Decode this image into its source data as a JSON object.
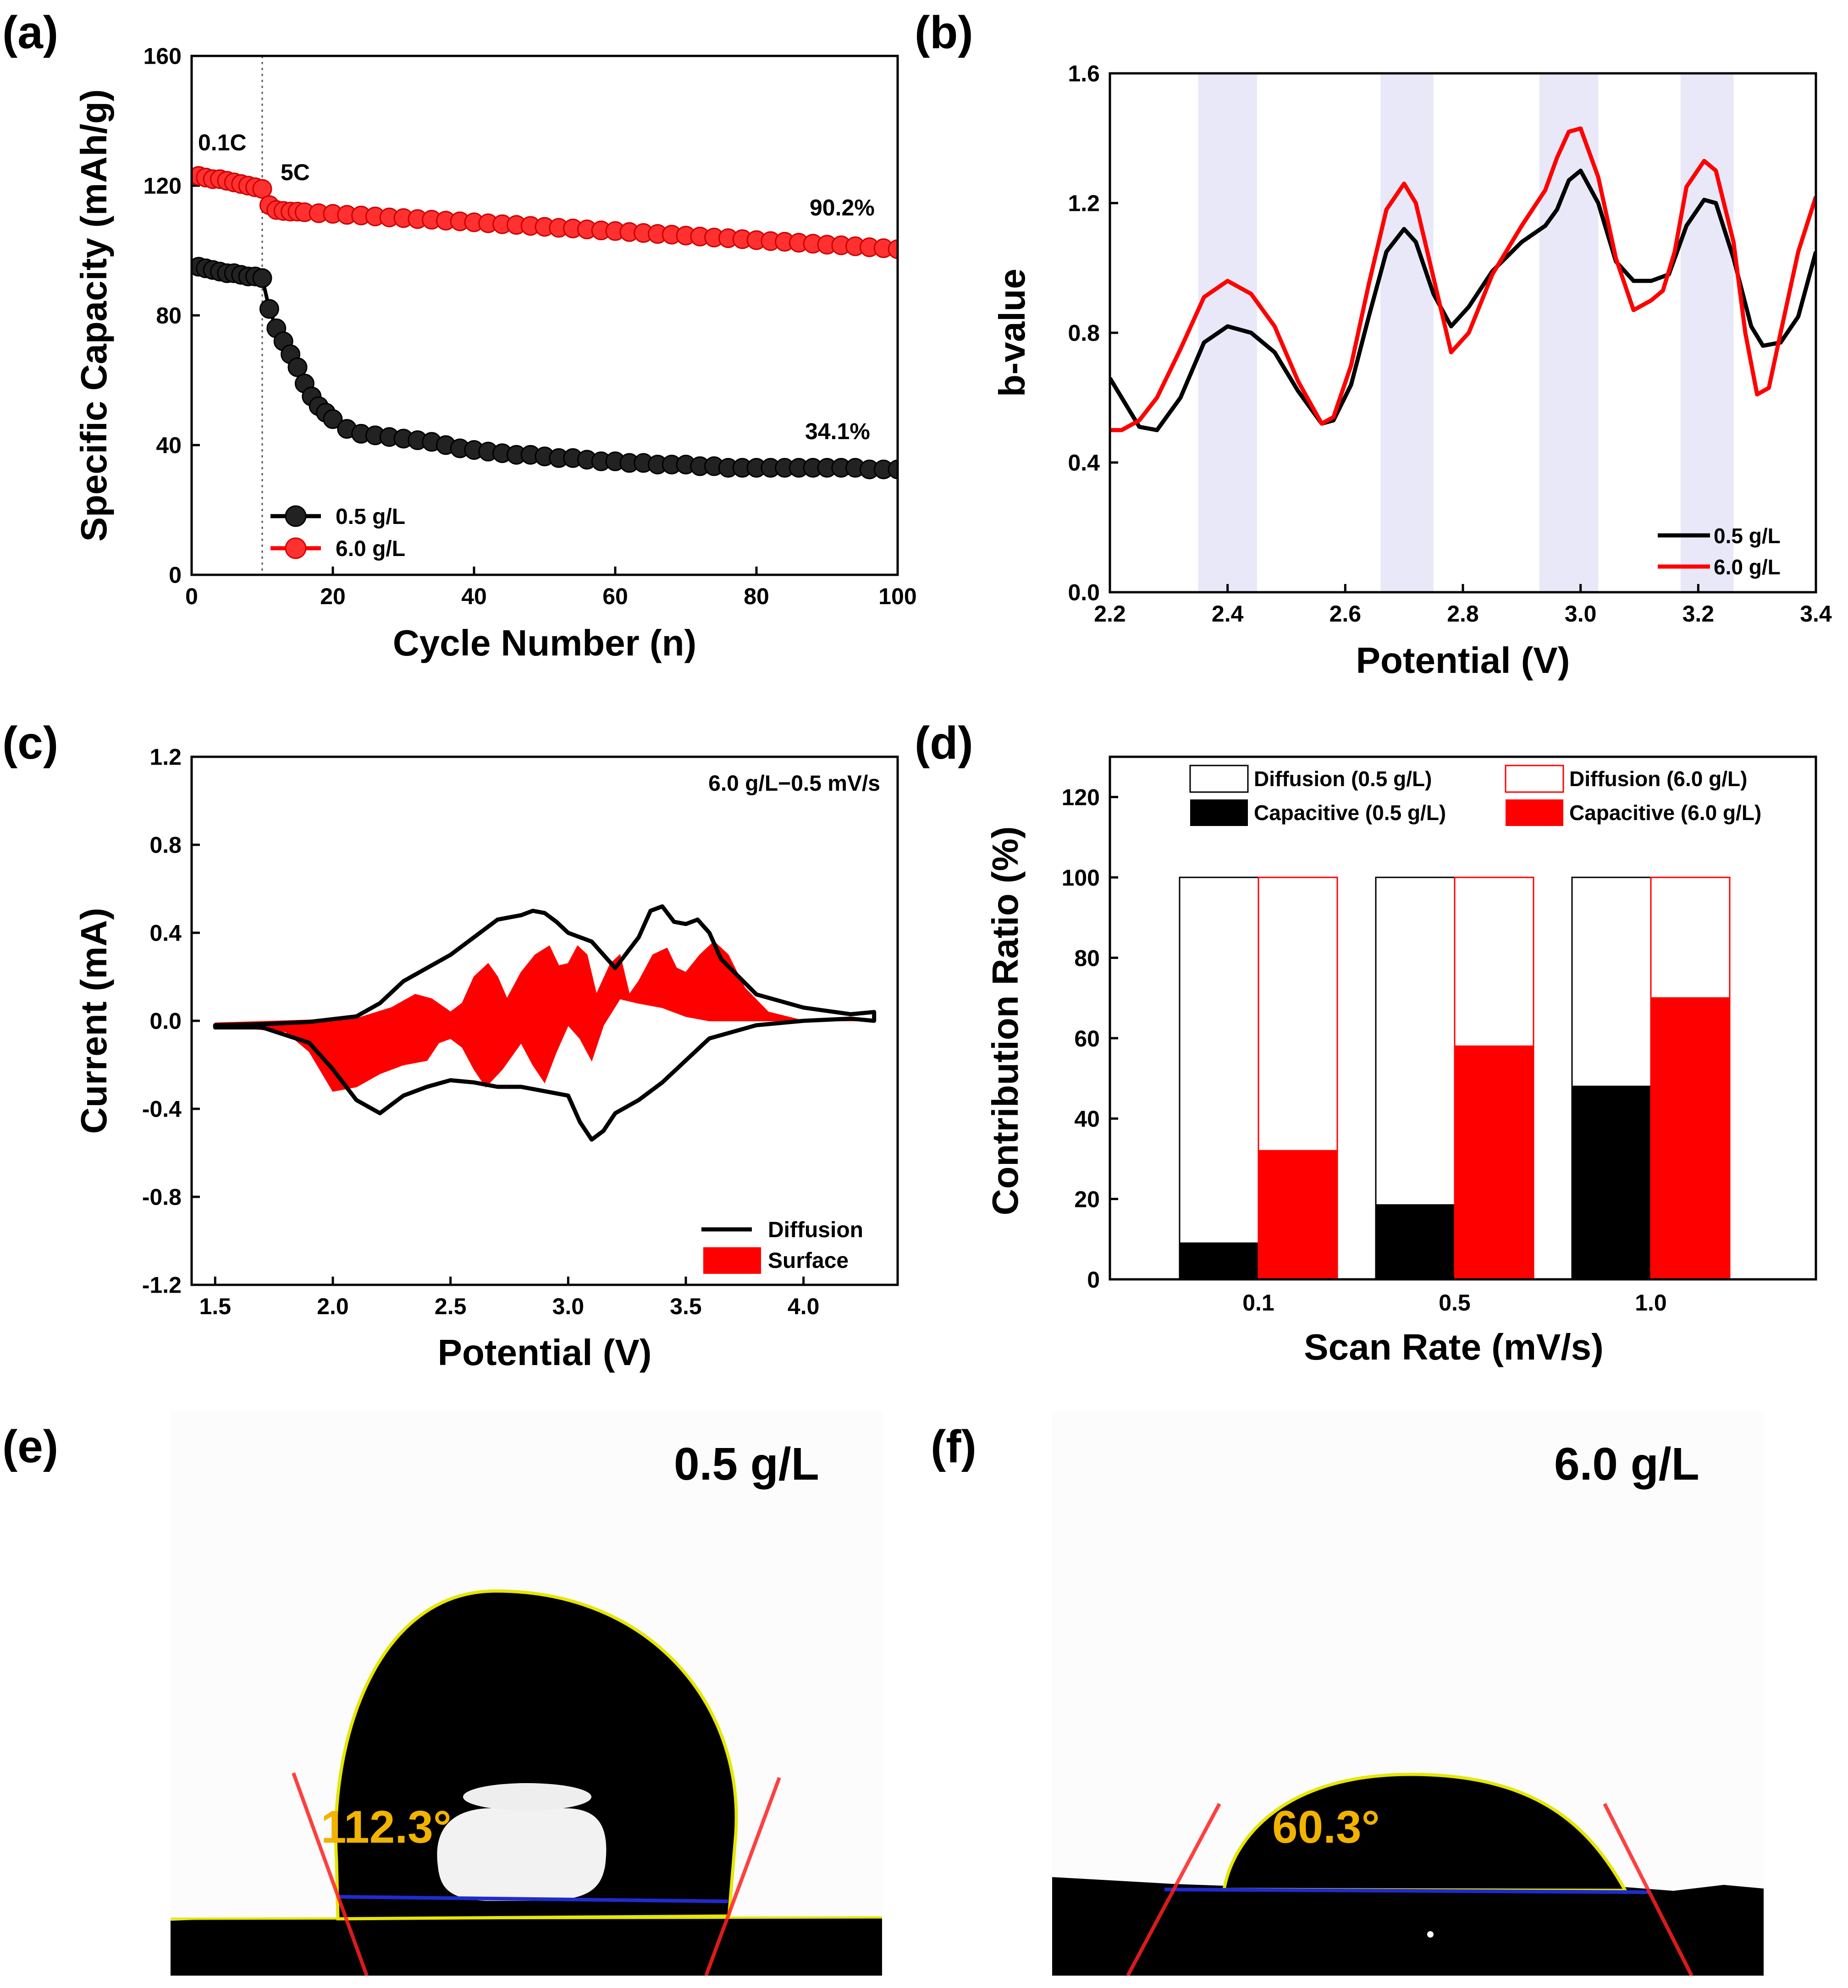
{
  "figure": {
    "panel_labels": [
      "(a)",
      "(b)",
      "(c)",
      "(d)",
      "(e)",
      "(f)"
    ]
  },
  "colors": {
    "black_series": "#000000",
    "red_series": "#ff0000",
    "band": "#e8e8f8",
    "baseline": "#1f2bd0",
    "angle_text": "#f2b200",
    "outline": "#e6e600"
  },
  "chart_data": [
    {
      "panel": "(a)",
      "type": "scatter",
      "xlabel": "Cycle Number (n)",
      "ylabel": "Specific Capacity (mAh/g)",
      "xlim": [
        0,
        100
      ],
      "ylim": [
        0,
        160
      ],
      "xticks": [
        0,
        20,
        40,
        60,
        80,
        100
      ],
      "yticks": [
        0,
        40,
        80,
        120,
        160
      ],
      "xtick_labels": [
        "0",
        "20",
        "40",
        "60",
        "80",
        "100"
      ],
      "ytick_labels": [
        "0",
        "40",
        "80",
        "120",
        "160"
      ],
      "annotations": [
        "0.1C",
        "5C",
        "90.2%",
        "34.1%"
      ],
      "rate_switch_x": 10,
      "series": [
        {
          "name": "0.5 g/L",
          "color": "#000000",
          "x": [
            1,
            2,
            3,
            4,
            5,
            6,
            7,
            8,
            9,
            10,
            11,
            12,
            13,
            14,
            15,
            16,
            17,
            18,
            19,
            20,
            22,
            24,
            26,
            28,
            30,
            32,
            34,
            36,
            38,
            40,
            42,
            44,
            46,
            48,
            50,
            52,
            54,
            56,
            58,
            60,
            62,
            64,
            66,
            68,
            70,
            72,
            74,
            76,
            78,
            80,
            82,
            84,
            86,
            88,
            90,
            92,
            94,
            96,
            98,
            100
          ],
          "y": [
            95,
            94.5,
            94,
            93.5,
            93,
            93,
            92.5,
            92,
            92,
            91.5,
            82,
            76,
            72,
            68,
            64,
            59,
            55,
            52,
            50,
            48,
            45,
            43.5,
            43,
            42.5,
            42,
            41.5,
            41,
            40,
            39,
            38.5,
            38,
            37.5,
            37,
            37,
            36.5,
            36,
            36,
            35.5,
            35,
            35,
            34.5,
            34.5,
            34,
            34,
            34,
            33.5,
            33.5,
            33,
            33,
            33,
            33,
            33,
            33,
            33,
            33,
            33,
            33,
            32.5,
            32.5,
            32.5
          ]
        },
        {
          "name": "6.0 g/L",
          "color": "#ff0000",
          "x": [
            1,
            2,
            3,
            4,
            5,
            6,
            7,
            8,
            9,
            10,
            11,
            12,
            13,
            14,
            15,
            16,
            18,
            20,
            22,
            24,
            26,
            28,
            30,
            32,
            34,
            36,
            38,
            40,
            42,
            44,
            46,
            48,
            50,
            52,
            54,
            56,
            58,
            60,
            62,
            64,
            66,
            68,
            70,
            72,
            74,
            76,
            78,
            80,
            82,
            84,
            86,
            88,
            90,
            92,
            94,
            96,
            98,
            100
          ],
          "y": [
            123,
            122.5,
            122,
            122,
            121.5,
            121,
            120.5,
            120,
            119.5,
            119,
            114,
            112.5,
            112.2,
            112,
            112,
            111.8,
            111.5,
            111.3,
            111,
            110.8,
            110.5,
            110.2,
            110,
            109.7,
            109.5,
            109.2,
            109,
            108.7,
            108.4,
            108.1,
            107.9,
            107.6,
            107.3,
            107,
            106.8,
            106.5,
            106.2,
            106,
            105.7,
            105.4,
            105.1,
            104.9,
            104.6,
            104.3,
            104,
            103.8,
            103.5,
            103.2,
            102.9,
            102.7,
            102.4,
            102.1,
            101.8,
            101.6,
            101.3,
            101,
            100.7,
            100.4
          ]
        }
      ]
    },
    {
      "panel": "(b)",
      "type": "line",
      "xlabel": "Potential (V)",
      "ylabel": "b-value",
      "xlim": [
        2.2,
        3.4
      ],
      "ylim": [
        0.0,
        1.6
      ],
      "xticks": [
        2.2,
        2.4,
        2.6,
        2.8,
        3.0,
        3.2,
        3.4
      ],
      "yticks": [
        0.0,
        0.4,
        0.8,
        1.2,
        1.6
      ],
      "xtick_labels": [
        "2.2",
        "2.4",
        "2.6",
        "2.8",
        "3.0",
        "3.2",
        "3.4"
      ],
      "ytick_labels": [
        "0.0",
        "0.4",
        "0.8",
        "1.2",
        "1.6"
      ],
      "bands": [
        [
          2.35,
          2.45
        ],
        [
          2.66,
          2.75
        ],
        [
          2.93,
          3.03
        ],
        [
          3.17,
          3.26
        ]
      ],
      "series": [
        {
          "name": "0.5 g/L",
          "color": "#000000",
          "x": [
            2.2,
            2.22,
            2.25,
            2.28,
            2.32,
            2.36,
            2.4,
            2.44,
            2.48,
            2.52,
            2.56,
            2.58,
            2.61,
            2.64,
            2.67,
            2.7,
            2.72,
            2.75,
            2.78,
            2.81,
            2.85,
            2.9,
            2.94,
            2.96,
            2.98,
            3.0,
            3.03,
            3.06,
            3.09,
            3.12,
            3.15,
            3.18,
            3.21,
            3.23,
            3.26,
            3.29,
            3.31,
            3.34,
            3.37,
            3.4
          ],
          "y": [
            0.66,
            0.6,
            0.51,
            0.5,
            0.6,
            0.77,
            0.82,
            0.8,
            0.74,
            0.62,
            0.52,
            0.53,
            0.64,
            0.85,
            1.05,
            1.12,
            1.08,
            0.92,
            0.82,
            0.88,
            0.99,
            1.08,
            1.13,
            1.18,
            1.27,
            1.3,
            1.2,
            1.02,
            0.96,
            0.96,
            0.98,
            1.13,
            1.21,
            1.2,
            1.03,
            0.82,
            0.76,
            0.77,
            0.85,
            1.05
          ]
        },
        {
          "name": "6.0 g/L",
          "color": "#ff0000",
          "x": [
            2.2,
            2.22,
            2.25,
            2.28,
            2.32,
            2.36,
            2.4,
            2.44,
            2.48,
            2.52,
            2.56,
            2.58,
            2.61,
            2.64,
            2.67,
            2.7,
            2.72,
            2.75,
            2.78,
            2.81,
            2.85,
            2.9,
            2.94,
            2.96,
            2.98,
            3.0,
            3.03,
            3.06,
            3.09,
            3.12,
            3.14,
            3.16,
            3.18,
            3.21,
            3.23,
            3.26,
            3.28,
            3.3,
            3.32,
            3.34,
            3.37,
            3.4
          ],
          "y": [
            0.5,
            0.5,
            0.53,
            0.6,
            0.75,
            0.91,
            0.96,
            0.92,
            0.82,
            0.65,
            0.52,
            0.54,
            0.7,
            0.95,
            1.18,
            1.26,
            1.2,
            0.97,
            0.74,
            0.8,
            0.98,
            1.13,
            1.24,
            1.34,
            1.42,
            1.43,
            1.28,
            1.03,
            0.87,
            0.9,
            0.93,
            1.05,
            1.25,
            1.33,
            1.3,
            1.08,
            0.8,
            0.61,
            0.63,
            0.8,
            1.05,
            1.22
          ]
        }
      ]
    },
    {
      "panel": "(c)",
      "type": "line",
      "xlabel": "Potential (V)",
      "ylabel": "Current (mA)",
      "title": "6.0 g/L−0.5 mV/s",
      "xlim": [
        1.4,
        4.4
      ],
      "ylim": [
        -1.2,
        1.2
      ],
      "xticks": [
        1.5,
        2.0,
        2.5,
        3.0,
        3.5,
        4.0
      ],
      "yticks": [
        -1.2,
        -0.8,
        -0.4,
        0.0,
        0.4,
        0.8,
        1.2
      ],
      "xtick_labels": [
        "1.5",
        "2.0",
        "2.5",
        "3.0",
        "3.5",
        "4.0"
      ],
      "ytick_labels": [
        "-1.2",
        "-0.8",
        "-0.4",
        "0.0",
        "0.4",
        "0.8",
        "1.2"
      ],
      "series": [
        {
          "name": "Diffusion",
          "color": "#000000",
          "upper_x": [
            1.5,
            1.7,
            1.9,
            2.1,
            2.2,
            2.3,
            2.5,
            2.6,
            2.7,
            2.8,
            2.85,
            2.9,
            2.95,
            3.0,
            3.05,
            3.1,
            3.15,
            3.2,
            3.3,
            3.35,
            3.4,
            3.45,
            3.5,
            3.55,
            3.6,
            3.65,
            3.8,
            4.0,
            4.2,
            4.3
          ],
          "upper_y": [
            -0.02,
            -0.015,
            -0.005,
            0.02,
            0.08,
            0.18,
            0.3,
            0.38,
            0.46,
            0.48,
            0.5,
            0.49,
            0.45,
            0.4,
            0.38,
            0.36,
            0.3,
            0.24,
            0.38,
            0.5,
            0.52,
            0.45,
            0.44,
            0.46,
            0.4,
            0.28,
            0.12,
            0.06,
            0.03,
            0.04
          ],
          "lower_x": [
            4.3,
            4.2,
            4.0,
            3.8,
            3.6,
            3.5,
            3.4,
            3.3,
            3.2,
            3.15,
            3.1,
            3.05,
            3.0,
            2.9,
            2.8,
            2.7,
            2.6,
            2.5,
            2.4,
            2.3,
            2.2,
            2.1,
            2.0,
            1.9,
            1.7,
            1.5
          ],
          "lower_y": [
            0.0,
            0.01,
            0.0,
            -0.02,
            -0.08,
            -0.18,
            -0.28,
            -0.36,
            -0.42,
            -0.5,
            -0.54,
            -0.46,
            -0.34,
            -0.32,
            -0.3,
            -0.3,
            -0.28,
            -0.27,
            -0.3,
            -0.34,
            -0.42,
            -0.36,
            -0.22,
            -0.1,
            -0.03,
            -0.03
          ]
        },
        {
          "name": "Surface",
          "color": "#ff0000",
          "upper_x": [
            1.5,
            1.8,
            2.1,
            2.25,
            2.35,
            2.42,
            2.5,
            2.55,
            2.6,
            2.66,
            2.7,
            2.74,
            2.8,
            2.86,
            2.92,
            2.96,
            3.0,
            3.04,
            3.08,
            3.12,
            3.18,
            3.22,
            3.26,
            3.3,
            3.36,
            3.42,
            3.46,
            3.5,
            3.56,
            3.62,
            3.68,
            3.75,
            3.85,
            4.0,
            4.3
          ],
          "upper_y": [
            -0.01,
            0.0,
            0.01,
            0.06,
            0.12,
            0.1,
            0.04,
            0.08,
            0.2,
            0.26,
            0.2,
            0.1,
            0.22,
            0.3,
            0.34,
            0.25,
            0.26,
            0.34,
            0.3,
            0.12,
            0.26,
            0.3,
            0.12,
            0.18,
            0.3,
            0.33,
            0.24,
            0.22,
            0.3,
            0.36,
            0.3,
            0.15,
            0.04,
            0.0,
            0.0
          ],
          "lower_x": [
            4.3,
            4.0,
            3.85,
            3.7,
            3.6,
            3.5,
            3.4,
            3.3,
            3.22,
            3.15,
            3.1,
            3.05,
            3.0,
            2.95,
            2.9,
            2.85,
            2.8,
            2.72,
            2.65,
            2.6,
            2.55,
            2.5,
            2.45,
            2.4,
            2.3,
            2.2,
            2.1,
            2.0,
            1.9,
            1.8,
            1.5
          ],
          "lower_y": [
            0.0,
            0.0,
            0.0,
            0.0,
            0.0,
            0.02,
            0.06,
            0.08,
            0.1,
            -0.02,
            -0.18,
            -0.08,
            -0.02,
            -0.14,
            -0.28,
            -0.2,
            -0.1,
            -0.22,
            -0.3,
            -0.22,
            -0.12,
            -0.08,
            -0.1,
            -0.18,
            -0.2,
            -0.24,
            -0.3,
            -0.32,
            -0.14,
            -0.05,
            -0.02
          ]
        }
      ],
      "legend": [
        "Diffusion",
        "Surface"
      ]
    },
    {
      "panel": "(d)",
      "type": "bar",
      "xlabel": "Scan Rate (mV/s)",
      "ylabel": "Contribution Ratio (%)",
      "categories": [
        "0.1",
        "0.5",
        "1.0"
      ],
      "ylim": [
        0,
        130
      ],
      "yticks": [
        0,
        20,
        40,
        60,
        80,
        100,
        120
      ],
      "ytick_labels": [
        "0",
        "20",
        "40",
        "60",
        "80",
        "100",
        "120"
      ],
      "series": [
        {
          "name": "Capacitive (0.5 g/L)",
          "values": [
            9,
            18.5,
            48
          ]
        },
        {
          "name": "Diffusion (0.5 g/L)",
          "values": [
            91,
            81.5,
            52
          ]
        },
        {
          "name": "Capacitive (6.0 g/L)",
          "values": [
            32,
            58,
            70
          ]
        },
        {
          "name": "Diffusion (6.0 g/L)",
          "values": [
            68,
            42,
            30
          ]
        }
      ],
      "legend": [
        "Diffusion (0.5 g/L)",
        "Capacitive (0.5 g/L)",
        "Diffusion (6.0 g/L)",
        "Capacitive (6.0 g/L)"
      ]
    }
  ],
  "photos": [
    {
      "panel": "(e)",
      "sample": "0.5 g/L",
      "contact_angle": "112.3°"
    },
    {
      "panel": "(f)",
      "sample": "6.0 g/L",
      "contact_angle": "60.3°"
    }
  ]
}
